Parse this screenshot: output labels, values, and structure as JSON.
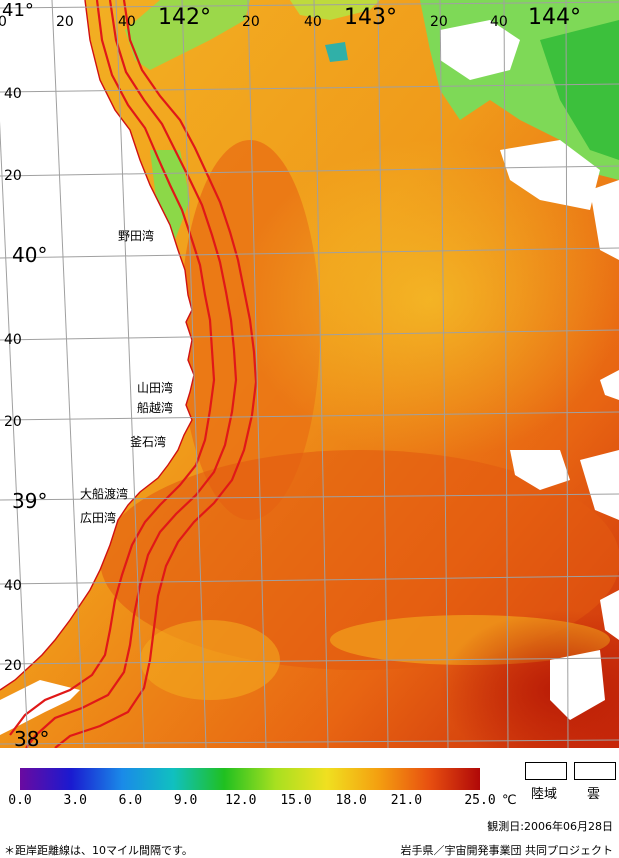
{
  "map": {
    "lat_labels": [
      {
        "text": "41°",
        "kind": "deg"
      },
      {
        "text": "40",
        "kind": "min"
      },
      {
        "text": "20",
        "kind": "min"
      },
      {
        "text": "40°",
        "kind": "deg"
      },
      {
        "text": "40",
        "kind": "min"
      },
      {
        "text": "20",
        "kind": "min"
      },
      {
        "text": "39°",
        "kind": "deg"
      },
      {
        "text": "40",
        "kind": "min"
      },
      {
        "text": "20",
        "kind": "min"
      },
      {
        "text": "38°",
        "kind": "deg"
      }
    ],
    "lon_labels": [
      {
        "text": "0",
        "kind": "min"
      },
      {
        "text": "20",
        "kind": "min"
      },
      {
        "text": "40",
        "kind": "min"
      },
      {
        "text": "142°",
        "kind": "deg"
      },
      {
        "text": "20",
        "kind": "min"
      },
      {
        "text": "40",
        "kind": "min"
      },
      {
        "text": "143°",
        "kind": "deg"
      },
      {
        "text": "20",
        "kind": "min"
      },
      {
        "text": "40",
        "kind": "min"
      },
      {
        "text": "144°",
        "kind": "deg"
      }
    ],
    "places": [
      "野田湾",
      "山田湾",
      "船越湾",
      "釜石湾",
      "大船渡湾",
      "広田湾"
    ]
  },
  "colors": {
    "land": "#ffffff",
    "coast_lines": "#e01818",
    "grid": "#9a9a9a",
    "sst_warm": "#e85a10",
    "sst_mid": "#f08a18",
    "sst_cool": "#f5c020",
    "sst_cold": "#7ed957",
    "sst_hot": "#c42008"
  },
  "legend": {
    "ticks": [
      "0.0",
      "3.0",
      "6.0",
      "9.0",
      "12.0",
      "15.0",
      "18.0",
      "21.0",
      "25.0"
    ],
    "unit": "℃",
    "land_label": "陸域",
    "cloud_label": "雲",
    "gradient": [
      "#6a0aa0",
      "#1a1ad0",
      "#1a8ae8",
      "#10c0c0",
      "#20c020",
      "#a8e020",
      "#f0e020",
      "#f4a010",
      "#e85010",
      "#b00808"
    ]
  },
  "footer": {
    "date": "観測日:2006年06月28日",
    "note": "＊距岸距離線は、10マイル間隔です。",
    "credit": "岩手県／宇宙開発事業団 共同プロジェクト"
  }
}
